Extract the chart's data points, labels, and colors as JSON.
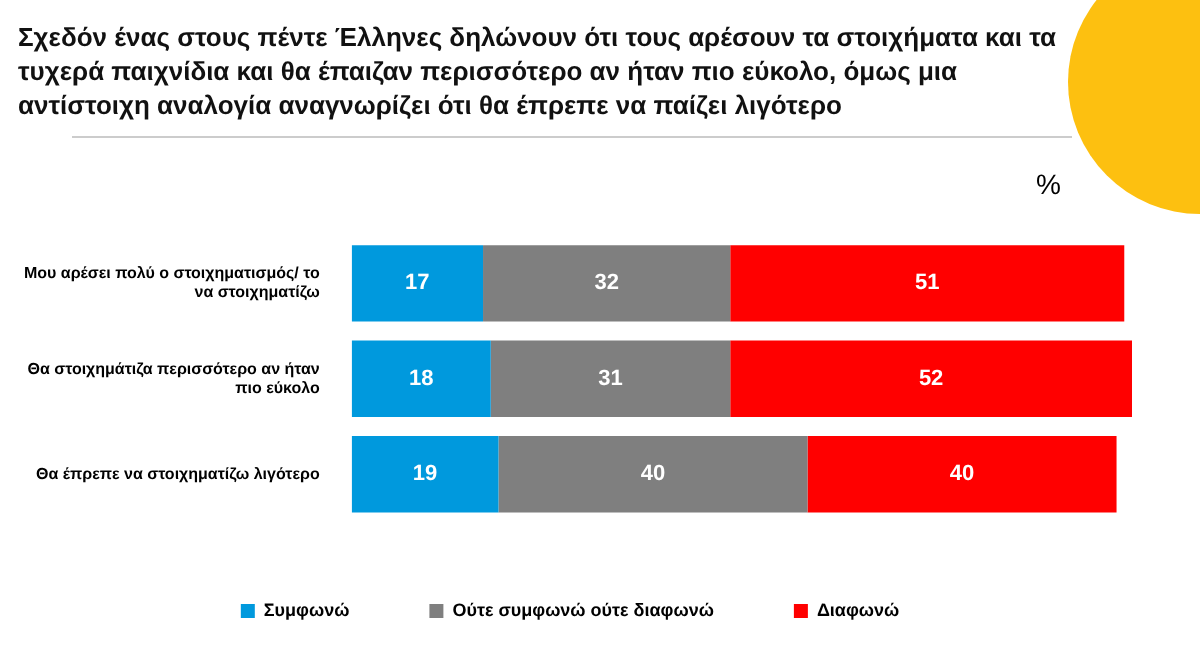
{
  "chart_data": {
    "type": "bar",
    "orientation": "horizontal",
    "stacked": true,
    "title": "Σχεδόν ένας στους πέντε Έλληνες δηλώνουν ότι τους αρέσουν τα στοιχήματα και τα τυχερά παιχνίδια και θα έπαιζαν περισσότερο αν ήταν πιο εύκολο, όμως μια αντίστοιχη αναλογία αναγνωρίζει ότι θα έπρεπε να παίζει λιγότερο",
    "annotations": [
      "%"
    ],
    "categories": [
      "Μου αρέσει πολύ ο στοιχηματισμός/ το να στοιχηματίζω",
      "Θα στοιχημάτιζα περισσότερο αν ήταν πιο εύκολο",
      "Θα έπρεπε να στοιχηματίζω λιγότερο"
    ],
    "series": [
      {
        "name": "Συμφωνώ",
        "color": "#0099dd",
        "values": [
          17,
          18,
          19
        ]
      },
      {
        "name": "Ούτε συμφωνώ ούτε διαφωνώ",
        "color": "#7f7f7f",
        "values": [
          32,
          31,
          40
        ]
      },
      {
        "name": "Διαφωνώ",
        "color": "#ff0000",
        "values": [
          51,
          52,
          40
        ]
      }
    ],
    "data_labels": true,
    "legend": "bottom"
  }
}
